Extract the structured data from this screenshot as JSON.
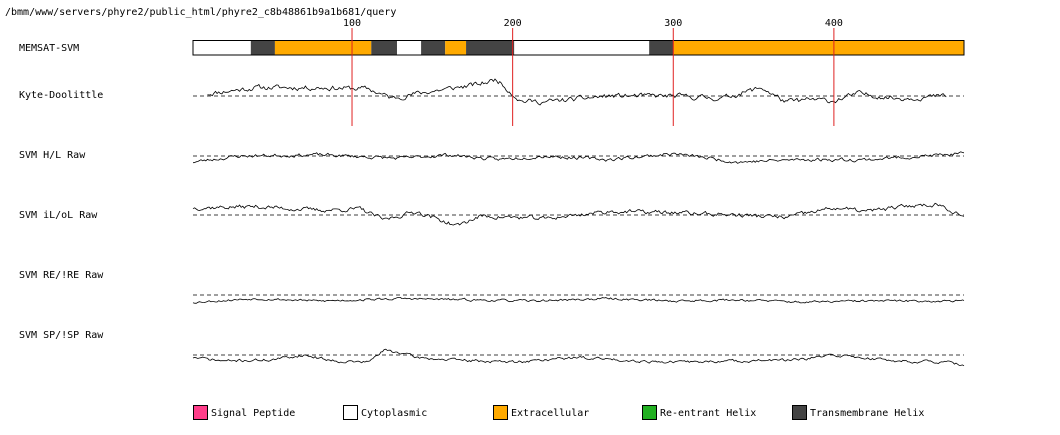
{
  "path_text": "/bmm/www/servers/phyre2/public_html/phyre2_c8b48861b9a1b681/query",
  "colors": {
    "signal_peptide": "#ff3e8a",
    "cytoplasmic": "#ffffff",
    "extracellular": "#ffaa00",
    "reentrant_helix": "#22b022",
    "transmembrane_helix": "#444444",
    "marker_line": "#e02020",
    "trace": "#000000"
  },
  "chart_data": {
    "type": "line",
    "x_range": [
      1,
      481
    ],
    "x_ticks": [
      100,
      200,
      300,
      400
    ],
    "topology": {
      "label": "MEMSAT-SVM",
      "segments": [
        {
          "type": "cytoplasmic",
          "start": 1,
          "end": 37
        },
        {
          "type": "transmembrane_helix",
          "start": 37,
          "end": 52
        },
        {
          "type": "extracellular",
          "start": 52,
          "end": 112
        },
        {
          "type": "transmembrane_helix",
          "start": 112,
          "end": 128
        },
        {
          "type": "cytoplasmic",
          "start": 128,
          "end": 143
        },
        {
          "type": "transmembrane_helix",
          "start": 143,
          "end": 158
        },
        {
          "type": "extracellular",
          "start": 158,
          "end": 171
        },
        {
          "type": "transmembrane_helix",
          "start": 171,
          "end": 201
        },
        {
          "type": "cytoplasmic",
          "start": 201,
          "end": 285
        },
        {
          "type": "transmembrane_helix",
          "start": 285,
          "end": 300
        },
        {
          "type": "extracellular",
          "start": 300,
          "end": 481
        }
      ]
    },
    "tracks": [
      {
        "label": "Kyte-Doolittle",
        "seed": 11,
        "x": [
          10,
          40,
          80,
          110,
          125,
          140,
          160,
          180,
          190,
          205,
          220,
          260,
          300,
          330,
          355,
          370,
          385,
          400,
          415,
          440,
          470
        ],
        "y": [
          0.2,
          0.7,
          0.7,
          0.6,
          -0.2,
          0.2,
          0.6,
          1.0,
          1.4,
          -0.4,
          -0.5,
          0.0,
          0.0,
          -0.2,
          0.7,
          -0.5,
          -0.3,
          -0.4,
          0.2,
          -0.2,
          0.0
        ],
        "noise": 0.18
      },
      {
        "label": "SVM H/L Raw",
        "seed": 23,
        "x": [
          1,
          30,
          80,
          130,
          160,
          190,
          220,
          260,
          300,
          340,
          380,
          420,
          481
        ],
        "y": [
          -0.5,
          0.0,
          0.1,
          -0.2,
          0.1,
          -0.3,
          0.0,
          -0.3,
          0.2,
          -0.5,
          -0.3,
          -0.3,
          0.2
        ],
        "noise": 0.12
      },
      {
        "label": "SVM iL/oL Raw",
        "seed": 37,
        "x": [
          1,
          40,
          80,
          105,
          120,
          140,
          165,
          180,
          220,
          260,
          300,
          340,
          370,
          400,
          420,
          450,
          465,
          481
        ],
        "y": [
          0.6,
          0.7,
          0.4,
          0.5,
          -0.4,
          0.3,
          -0.9,
          -0.1,
          -0.3,
          0.3,
          0.2,
          0.0,
          -0.2,
          0.6,
          0.3,
          0.8,
          0.9,
          -0.1
        ],
        "noise": 0.15
      },
      {
        "label": "SVM RE/!RE Raw",
        "seed": 53,
        "x": [
          1,
          40,
          80,
          130,
          170,
          210,
          260,
          300,
          340,
          380,
          420,
          481
        ],
        "y": [
          -0.6,
          -0.3,
          -0.5,
          -0.3,
          -0.4,
          -0.5,
          -0.3,
          -0.5,
          -0.4,
          -0.6,
          -0.5,
          -0.5
        ],
        "noise": 0.08
      },
      {
        "label": "SVM SP/!SP Raw",
        "seed": 71,
        "x": [
          1,
          20,
          50,
          70,
          90,
          110,
          120,
          130,
          140,
          160,
          200,
          240,
          280,
          300,
          340,
          380,
          400,
          440,
          470,
          481
        ],
        "y": [
          -0.2,
          -0.5,
          -0.4,
          0.0,
          -0.5,
          -0.6,
          0.4,
          0.2,
          -0.2,
          -0.4,
          -0.6,
          -0.2,
          -0.5,
          -0.6,
          -0.5,
          -0.4,
          0.0,
          -0.5,
          -0.6,
          -0.9
        ],
        "noise": 0.1
      }
    ]
  },
  "legend": [
    {
      "label": "Signal Peptide",
      "key": "signal_peptide"
    },
    {
      "label": "Cytoplasmic",
      "key": "cytoplasmic"
    },
    {
      "label": "Extracellular",
      "key": "extracellular"
    },
    {
      "label": "Re-entrant Helix",
      "key": "reentrant_helix"
    },
    {
      "label": "Transmembrane Helix",
      "key": "transmembrane_helix"
    }
  ]
}
